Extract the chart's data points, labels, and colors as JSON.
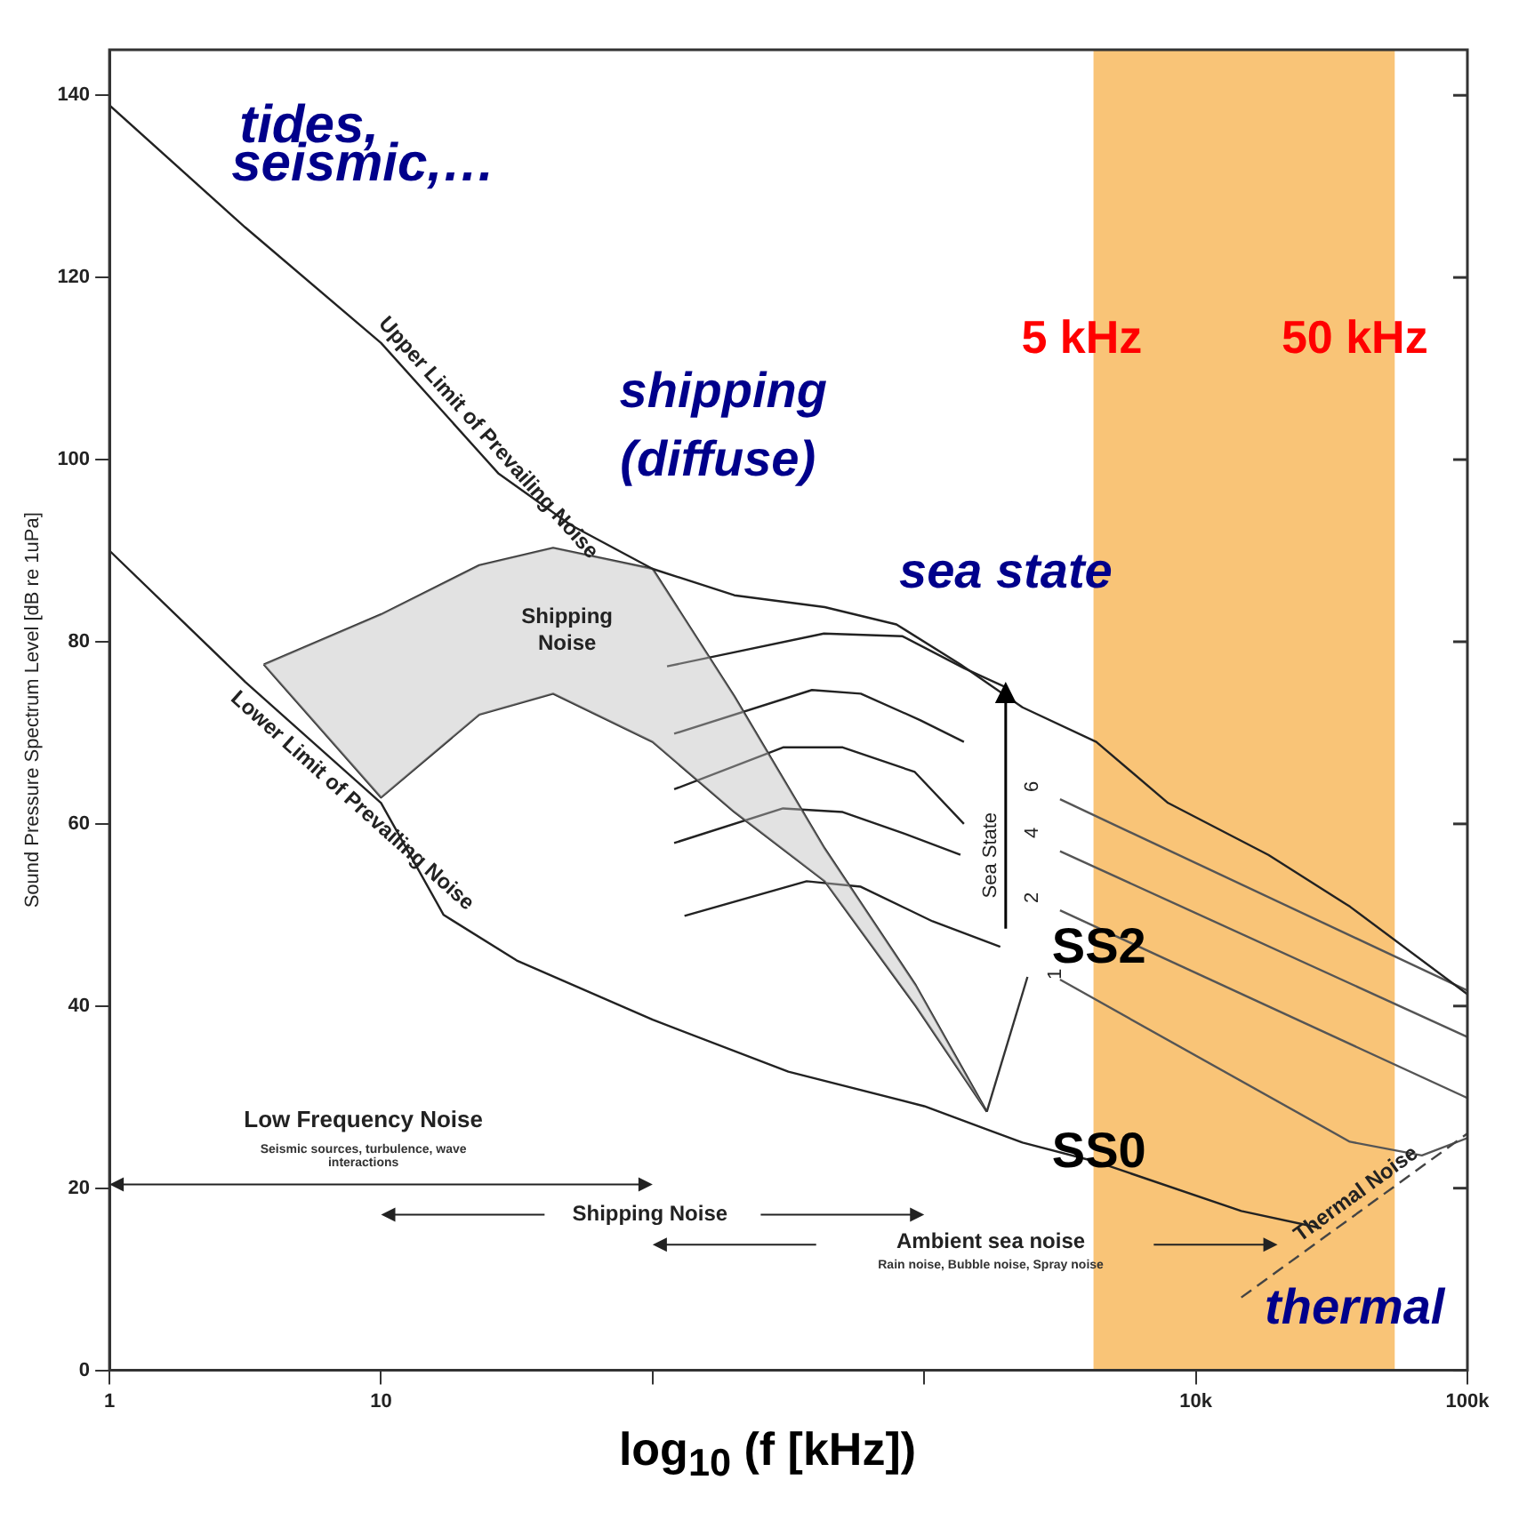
{
  "chart_data": {
    "type": "line",
    "xlabel": "log$_{10}$ (f [kHz])",
    "ylabel": "Sound Pressure Spectrum Level [dB re 1uPa]",
    "log": "x",
    "xlim": [
      1,
      100000
    ],
    "xticks": [
      1,
      10,
      {
        "value": 100,
        "label": null
      },
      {
        "value": 1000,
        "label": null
      },
      {
        "value": 10000,
        "label": "10k"
      },
      {
        "value": 100000,
        "label": "100k"
      }
    ],
    "ylim": [
      0,
      145
    ],
    "yticks": [
      0,
      20,
      40,
      60,
      80,
      100,
      120,
      140
    ],
    "grid": false,
    "legend": false,
    "marker": "none",
    "series": [
      {
        "name": "Upper Limit of Prevailing Noise",
        "color": "#222222",
        "x": [
          1,
          3.16,
          10,
          27,
          50,
          100,
          200,
          430,
          790,
          1360,
          2300,
          4300,
          7900,
          18500,
          37000,
          100000
        ],
        "values": [
          138.9,
          125.5,
          112.8,
          98.5,
          92.8,
          88,
          85.1,
          83.8,
          81.9,
          77.5,
          72.8,
          69,
          62.3,
          56.6,
          50.9,
          41.3
        ]
      },
      {
        "name": "Lower Limit of Prevailing Noise",
        "color": "#222222",
        "x": [
          1,
          3.16,
          10,
          17,
          31.6,
          100,
          316,
          1000,
          2300,
          4300,
          14700,
          29000
        ],
        "values": [
          90,
          75.6,
          62.3,
          50,
          45,
          38.5,
          32.8,
          29,
          25,
          22.9,
          17.5,
          15.6
        ]
      },
      {
        "name": "Thermal Noise",
        "color": "#444444",
        "line_style": "dashed",
        "x": [
          14700,
          100000
        ],
        "values": [
          8,
          26
        ]
      },
      {
        "color": "#333333",
        "x": [
          3.7,
          10,
          23,
          43,
          100,
          200,
          430,
          930,
          1700
        ],
        "values": [
          77.5,
          83,
          88.4,
          90.3,
          88,
          74,
          57.3,
          42.3,
          28.4
        ],
        "upper": [
          77.5,
          83,
          88.4,
          90.3,
          88,
          74,
          57.3,
          42.3,
          28.4
        ],
        "lower": [
          77.5,
          62.9,
          72,
          74.3,
          69,
          61.3,
          53.7,
          40,
          28.4
        ]
      },
      {
        "color": "#333333",
        "x": [
          3.7,
          10,
          23,
          43,
          100,
          200,
          430,
          930,
          1700
        ],
        "values": [
          77.5,
          62.9,
          72,
          74.3,
          69,
          61.3,
          53.7,
          40,
          28.4
        ]
      },
      {
        "color": "#333333",
        "x": [
          1700,
          2400
        ],
        "values": [
          28.4,
          43.2
        ]
      },
      {
        "color": "#222222",
        "x": [
          113,
          427,
          832,
          1400,
          1995
        ],
        "values": [
          77.3,
          80.9,
          80.6,
          77.1,
          75
        ]
      },
      {
        "color": "#222222",
        "x": [
          120,
          386,
          584,
          965,
          1400
        ],
        "values": [
          69.9,
          74.7,
          74.3,
          71.4,
          69
        ]
      },
      {
        "color": "#222222",
        "x": [
          120,
          302,
          501,
          923,
          1400
        ],
        "values": [
          63.8,
          68.4,
          68.4,
          65.7,
          60
        ]
      },
      {
        "color": "#222222",
        "x": [
          120,
          302,
          501,
          832,
          1359
        ],
        "values": [
          57.9,
          61.7,
          61.3,
          59,
          56.6
        ]
      },
      {
        "color": "#222222",
        "x": [
          131,
          369,
          584,
          1073,
          1905
        ],
        "values": [
          49.9,
          53.7,
          53.1,
          49.3,
          46.5
        ]
      },
      {
        "color": "#555555",
        "x": [
          3162,
          100000
        ],
        "values": [
          62.7,
          41.7
        ]
      },
      {
        "color": "#555555",
        "x": [
          3162,
          100000
        ],
        "values": [
          57,
          36.6
        ]
      },
      {
        "color": "#555555",
        "x": [
          3162,
          100000
        ],
        "values": [
          50.5,
          29.9
        ]
      },
      {
        "color": "#555555",
        "x": [
          3162,
          36900,
          68000,
          100000
        ],
        "values": [
          42.9,
          25.1,
          23.6,
          25.5
        ]
      }
    ],
    "bands": [
      {
        "axis": "x",
        "from": 4200,
        "to": 54000,
        "color": "#f7b04a"
      }
    ],
    "annotations": [
      "tides,",
      "seismic,…",
      "shipping",
      "(diffuse)",
      "sea state",
      "5 kHz",
      "50 kHz",
      {
        "text": "SS2",
        "x": 4400,
        "y": 46.3
      },
      {
        "text": "SS0",
        "x": 4400,
        "y": 23.8
      },
      "thermal",
      "Shipping",
      "Noise",
      "Low Frequency Noise",
      "Seismic sources, turbulence, wave",
      "interactions",
      "Shipping Noise",
      "Ambient sea noise",
      "Rain noise, Bubble noise, Spray noise",
      "Sea State",
      "6",
      "4",
      "2",
      "1"
    ]
  }
}
